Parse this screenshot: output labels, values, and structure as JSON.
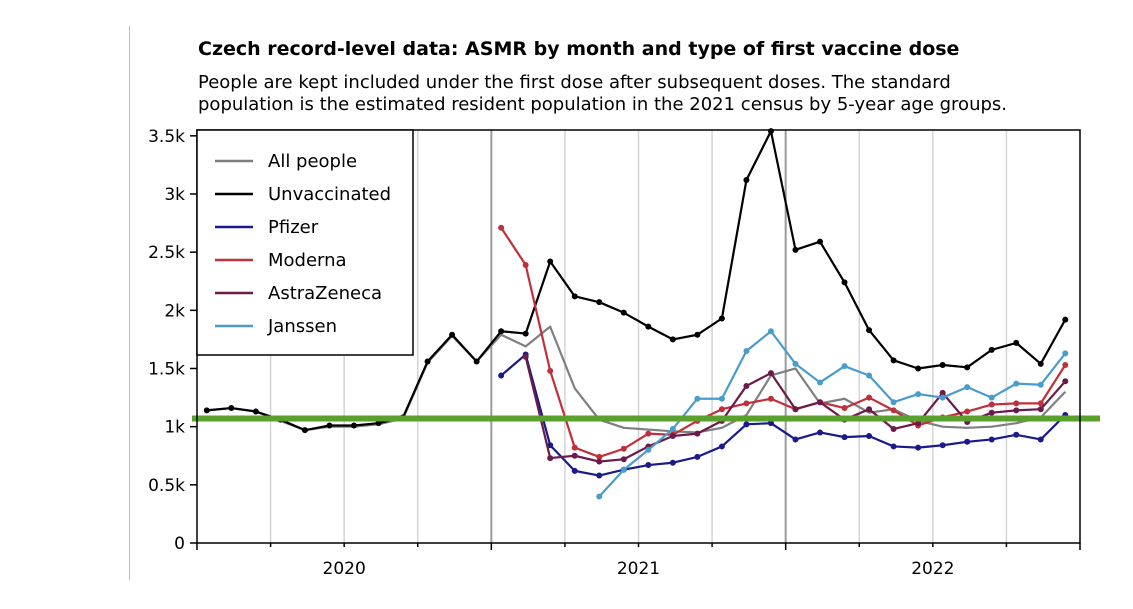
{
  "chart_data": {
    "type": "line",
    "title": "Czech record-level data: ASMR by month and type of first vaccine dose",
    "subtitle": "People are kept included under the first dose after subsequent doses. The standard\npopulation is the estimated resident population in the 2021 census by 5-year age groups.",
    "xlabel": "",
    "ylabel": "",
    "x_tick_labels": [
      "2020",
      "2021",
      "2022"
    ],
    "y_tick_labels": [
      "0",
      "0.5k",
      "1k",
      "1.5k",
      "2k",
      "2.5k",
      "3k",
      "3.5k"
    ],
    "y_ticks": [
      0,
      500,
      1000,
      1500,
      2000,
      2500,
      3000,
      3500
    ],
    "ylim": [
      0,
      3550
    ],
    "xlim": [
      0,
      36
    ],
    "x_month_index_note": "x = month index: 0 = 2020-01 ... 35 = 2022-12",
    "grid": true,
    "legend_position": "top-left",
    "reference_line": {
      "y": 1070,
      "color": "#5aa02c"
    },
    "series": [
      {
        "name": "All people",
        "color": "#7f7f7f",
        "markers": false,
        "x": [
          0,
          1,
          2,
          3,
          4,
          5,
          6,
          7,
          8,
          9,
          10,
          11,
          12,
          13,
          14,
          15,
          16,
          17,
          18,
          19,
          20,
          21,
          22,
          23,
          24,
          25,
          26,
          27,
          28,
          29,
          30,
          31,
          32,
          33,
          34,
          35
        ],
        "y": [
          1140,
          1160,
          1130,
          1050,
          970,
          1000,
          1000,
          1020,
          1070,
          1550,
          1780,
          1560,
          1790,
          1690,
          1860,
          1330,
          1060,
          990,
          975,
          960,
          950,
          990,
          1100,
          1440,
          1500,
          1200,
          1240,
          1120,
          1150,
          1050,
          1000,
          990,
          1000,
          1030,
          1080,
          1300
        ]
      },
      {
        "name": "Unvaccinated",
        "color": "#000000",
        "markers": true,
        "x": [
          0,
          1,
          2,
          3,
          4,
          5,
          6,
          7,
          8,
          9,
          10,
          11,
          12,
          13,
          14,
          15,
          16,
          17,
          18,
          19,
          20,
          21,
          22,
          23,
          24,
          25,
          26,
          27,
          28,
          29,
          30,
          31,
          32,
          33,
          34,
          35
        ],
        "y": [
          1140,
          1160,
          1130,
          1060,
          970,
          1010,
          1010,
          1030,
          1080,
          1560,
          1790,
          1560,
          1820,
          1800,
          2420,
          2120,
          2070,
          1980,
          1860,
          1750,
          1790,
          1930,
          3120,
          3540,
          2520,
          2590,
          2240,
          1830,
          1570,
          1500,
          1530,
          1510,
          1660,
          1720,
          1540,
          1920
        ]
      },
      {
        "name": "Pfizer",
        "color": "#1a1a8c",
        "markers": true,
        "x": [
          12,
          13,
          14,
          15,
          16,
          17,
          18,
          19,
          20,
          21,
          22,
          23,
          24,
          25,
          26,
          27,
          28,
          29,
          30,
          31,
          32,
          33,
          34,
          35
        ],
        "y": [
          1440,
          1620,
          840,
          620,
          580,
          630,
          670,
          690,
          740,
          830,
          1020,
          1030,
          890,
          950,
          910,
          920,
          830,
          820,
          840,
          870,
          890,
          930,
          890,
          1100
        ]
      },
      {
        "name": "Moderna",
        "color": "#c0303a",
        "markers": true,
        "x": [
          12,
          13,
          14,
          15,
          16,
          17,
          18,
          19,
          20,
          21,
          22,
          23,
          24,
          25,
          26,
          27,
          28,
          29,
          30,
          31,
          32,
          33,
          34,
          35
        ],
        "y": [
          2710,
          2390,
          1480,
          820,
          740,
          810,
          940,
          930,
          1050,
          1150,
          1200,
          1240,
          1150,
          1210,
          1160,
          1250,
          1140,
          1010,
          1080,
          1130,
          1190,
          1200,
          1200,
          1530
        ]
      },
      {
        "name": "AstraZeneca",
        "color": "#6b1a4a",
        "markers": true,
        "x": [
          13,
          14,
          15,
          16,
          17,
          18,
          19,
          20,
          21,
          22,
          23,
          24,
          25,
          26,
          27,
          28,
          29,
          30,
          31,
          32,
          33,
          34,
          35
        ],
        "y": [
          1600,
          730,
          750,
          700,
          720,
          830,
          920,
          940,
          1050,
          1350,
          1460,
          1150,
          1210,
          1060,
          1150,
          980,
          1030,
          1290,
          1040,
          1120,
          1140,
          1150,
          1390
        ]
      },
      {
        "name": "Janssen",
        "color": "#4a9ccc",
        "markers": true,
        "x": [
          16,
          17,
          18,
          19,
          20,
          21,
          22,
          23,
          24,
          25,
          26,
          27,
          28,
          29,
          30,
          31,
          32,
          33,
          34,
          35
        ],
        "y": [
          400,
          630,
          800,
          980,
          1240,
          1240,
          1650,
          1820,
          1540,
          1380,
          1520,
          1440,
          1210,
          1280,
          1250,
          1340,
          1250,
          1370,
          1360,
          1630
        ]
      }
    ]
  }
}
